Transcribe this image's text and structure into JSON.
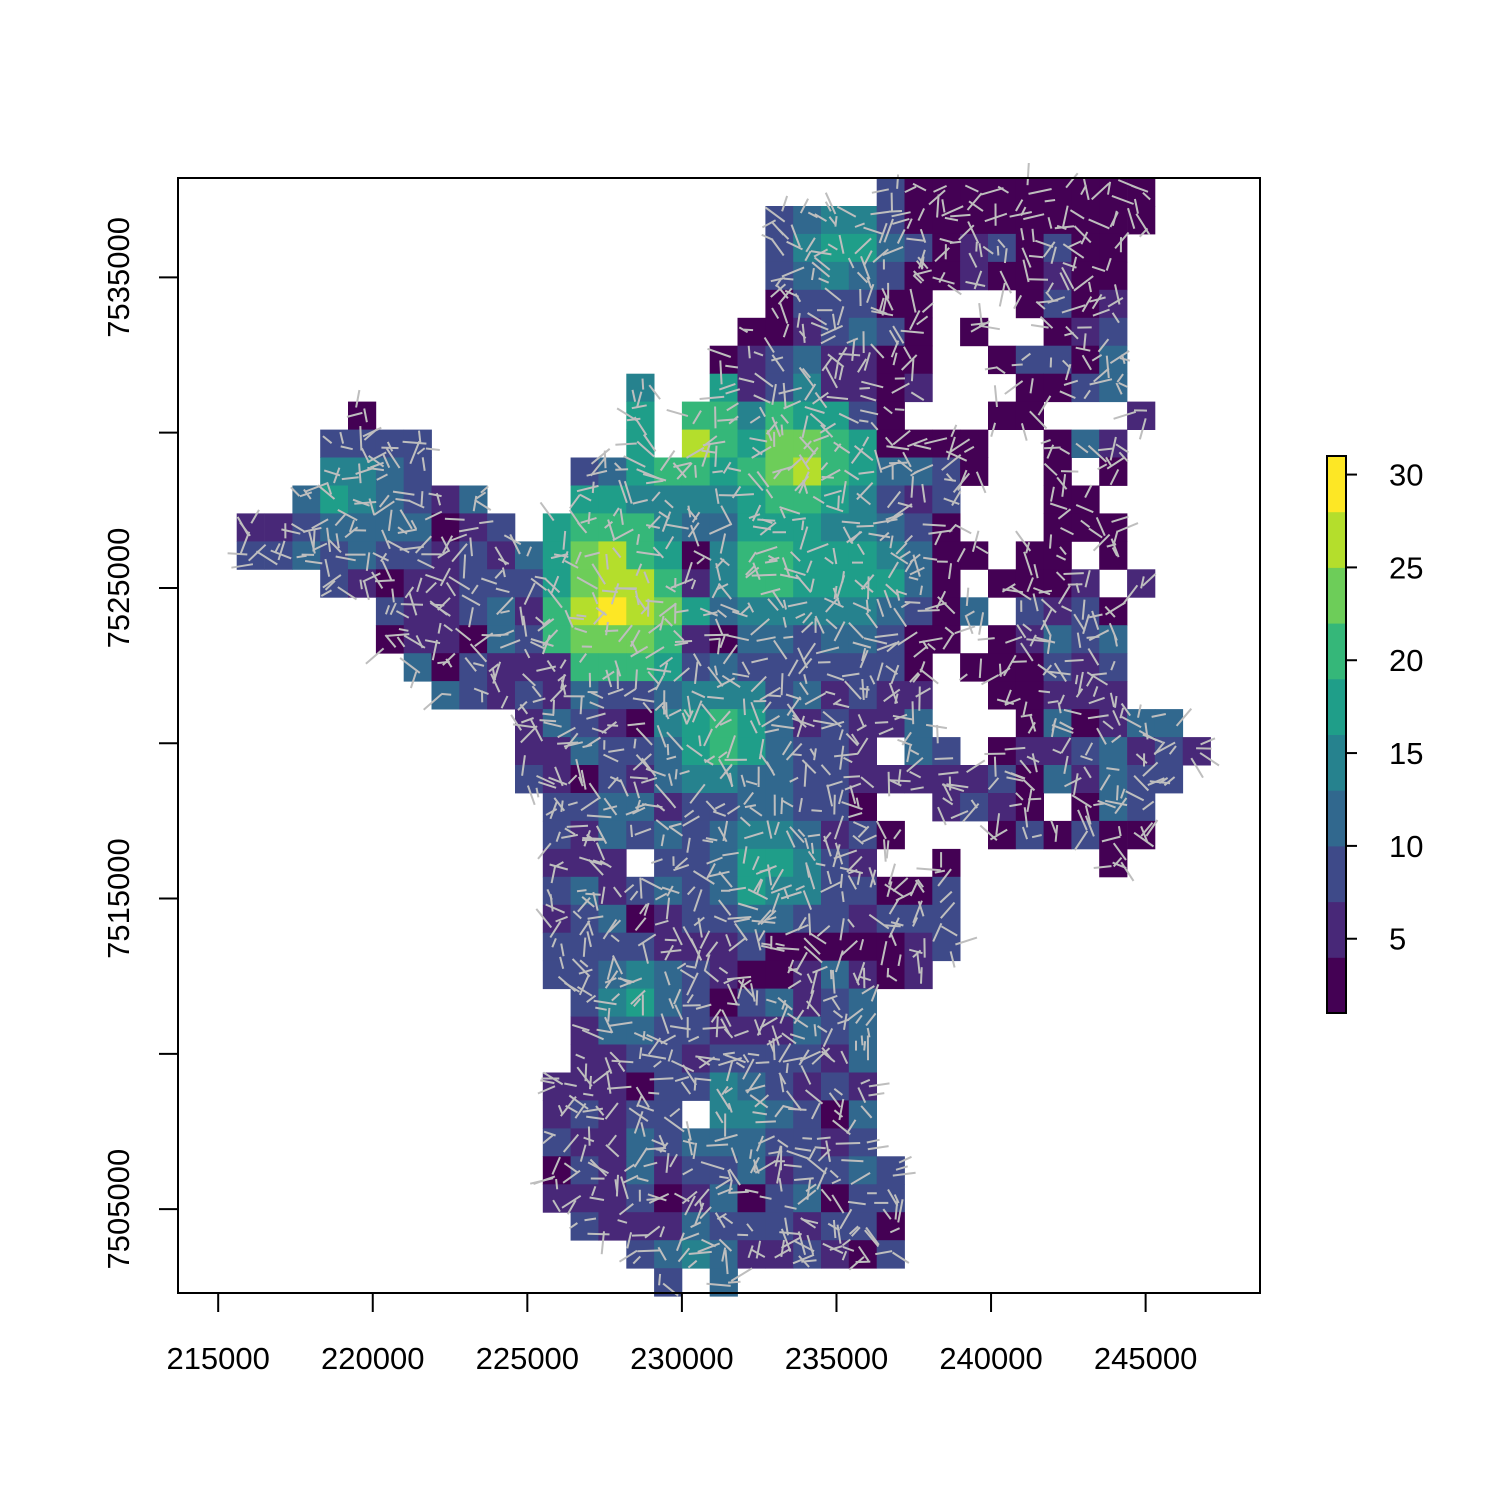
{
  "chart_data": {
    "type": "heatmap",
    "title": "",
    "xlabel": "",
    "ylabel": "",
    "xlim": [
      213700,
      248700
    ],
    "ylim": [
      7502300,
      7538200
    ],
    "x_ticks": [
      215000,
      220000,
      225000,
      230000,
      235000,
      240000,
      245000
    ],
    "x_tick_labels": [
      "215000",
      "220000",
      "225000",
      "230000",
      "235000",
      "240000",
      "245000"
    ],
    "y_ticks": [
      7505000,
      7510000,
      7515000,
      7520000,
      7525000,
      7530000,
      7535000
    ],
    "y_tick_labels": [
      "7505000",
      "",
      "7515000",
      "",
      "7525000",
      "",
      "7535000"
    ],
    "legend": {
      "placement": "right",
      "min": 1,
      "max": 31,
      "ticks": [
        5,
        10,
        15,
        20,
        25,
        30
      ],
      "tick_labels": [
        "5",
        "10",
        "15",
        "20",
        "25",
        "30"
      ],
      "palette": [
        "#440154",
        "#482878",
        "#3E4A89",
        "#31688E",
        "#26828E",
        "#1F9E89",
        "#35B779",
        "#6DCD59",
        "#B4DE2C",
        "#FDE725"
      ]
    },
    "overlay": {
      "description": "",
      "color": "#bebebe"
    },
    "cell_size": 900,
    "x0": 214700,
    "y_top": 7538200,
    "rows": [
      "........................##########..",
      "....................#@@@##########..",
      "....................#@@@###@@#@##...",
      "....................##@####@#@@##...",
      "....................#@@@@#...#@#@...",
      "...................##@@@@#.#..#@@...",
      "..................#@@@@@##..#@@@@...",
      "...............@..#@@@@@@@...##@@...",
      ".....#.........@.@@@@@@@#...##...@..",
      "....@@@@.......@.@@@@@@@####..#@@...",
      "....@@@@.....@@@@@@@@@@@@@@#..#.#...",
      "...@@@@@@@...@@@@@@@@@@@@@@...##....",
      ".@@@@@@@@@@.@@@@@@@@@@@@@@#...###...",
      ".@@@@@@@@@@@@@@@@@@@@@@@@@##.##.#...",
      "....@@@@@@@@@@@@@@@@@@@@@@#.###@.@..",
      "......@@@@@@@@@@@@@@@@@@@@#@.@@@@...",
      "......#@@@@@@@@@@@@@@@@@@##.#@@@@...",
      ".......@@@@@@@@@@@@@@@@@@#.###@@@...",
      "........@@@@@@@@@@@@@@@@@@..##@@@...",
      "...........@@@@@@@@@@@@@@@...#@##@@.",
      "...........@@@@@@@@@@@@@.@@.#@@@@@@@",
      "...........@@@@@@@@@@@@@@@@@@@@@@@@.",
      "............@@@@@@@@@@@#..@@@#.@@@..",
      "............@@@@@@@@@@@@#...#@#@##..",
      "............@@@.@@@@@@@@..#.....#...",
      "............@@@@@@@@@@@@##@.........",
      "............@@@@@@@@@@@@@@@.........",
      "............@@@@@@@@@@@@#@@.........",
      "............@@@@@@@@@@@@#@..........",
      ".............@@@@@@@@@@@............",
      ".............@@@@@@@@@@@............",
      ".............@@@@@@@@@@@............",
      "............@@@@@@@@@@@@............",
      "............@@@@@.@@@@@@............",
      "............@@@@@@@@@@@@............",
      "............@@@@@@@@@@@@@...........",
      "............@@@@@@@@@@@@@...........",
      ".............@@@@@@@@@@@@...........",
      "...............@@@@@@@@@@...........",
      "................#.#.................."
    ],
    "values": [
      "..........................................",
      "...............................................",
      "........................................................",
      "........................................................"
    ]
  }
}
